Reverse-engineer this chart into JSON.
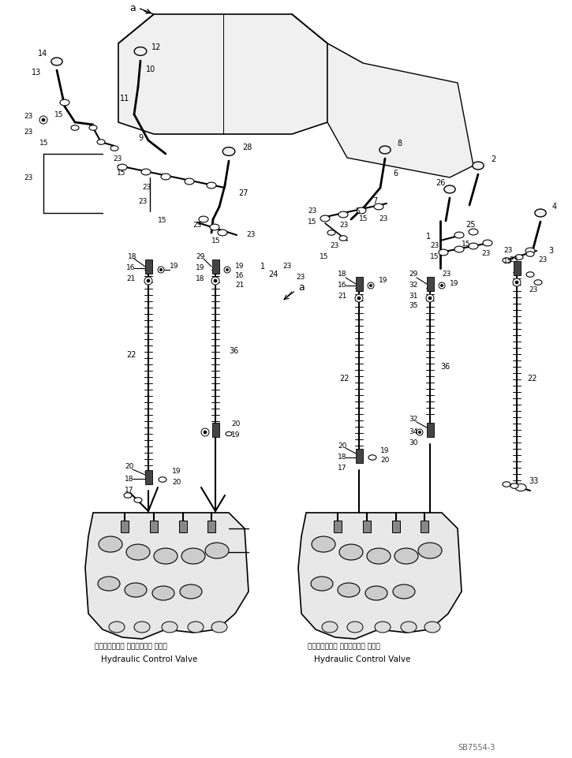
{
  "bg_color": "#ffffff",
  "line_color": "#000000",
  "fig_width": 7.25,
  "fig_height": 9.61,
  "dpi": 100,
  "label_left_japanese": "ハイドロリック コントロール バルブ",
  "label_left_english": "Hydraulic Control Valve",
  "label_right_japanese": "ハイドロリック コントロール バルブ",
  "label_right_english": "Hydraulic Control Valve",
  "watermark": "SB7554-3"
}
